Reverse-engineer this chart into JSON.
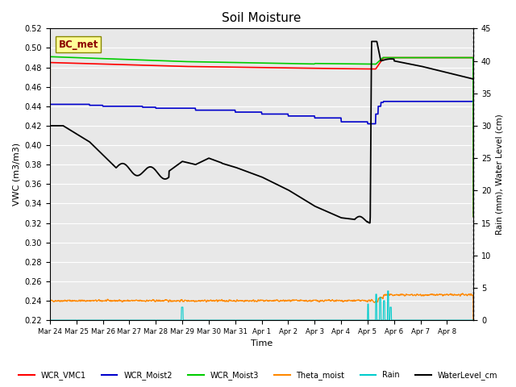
{
  "title": "Soil Moisture",
  "ylabel_left": "VWC (m3/m3)",
  "ylabel_right": "Rain (mm), Water Level (cm)",
  "xlabel": "Time",
  "annotation_text": "BC_met",
  "ylim_left": [
    0.22,
    0.52
  ],
  "ylim_right": [
    0,
    45
  ],
  "yticks_left": [
    0.22,
    0.24,
    0.26,
    0.28,
    0.3,
    0.32,
    0.34,
    0.36,
    0.38,
    0.4,
    0.42,
    0.44,
    0.46,
    0.48,
    0.5,
    0.52
  ],
  "yticks_right": [
    0,
    5,
    10,
    15,
    20,
    25,
    30,
    35,
    40,
    45
  ],
  "background_color": "#e8e8e8",
  "legend_colors": {
    "WCR_VMC1": "#ff0000",
    "WCR_Moist2": "#0000cc",
    "WCR_Moist3": "#00cc00",
    "Theta_moist": "#ff8800",
    "Rain": "#00cccc",
    "WaterLevel_cm": "#000000"
  },
  "x_labels": [
    "Mar 24",
    "Mar 25",
    "Mar 26",
    "Mar 27",
    "Mar 28",
    "Mar 29",
    "Mar 30",
    "Mar 31",
    "Apr 1",
    "Apr 2",
    "Apr 3",
    "Apr 4",
    "Apr 5",
    "Apr 6",
    "Apr 7",
    "Apr 8"
  ]
}
